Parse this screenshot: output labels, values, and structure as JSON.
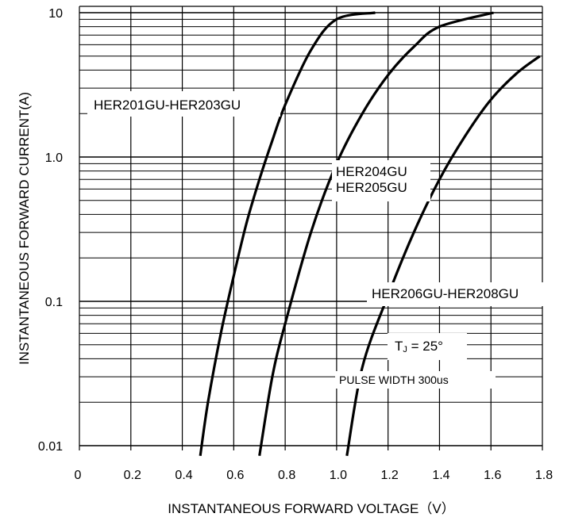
{
  "chart_data": {
    "type": "line",
    "xlabel": "INSTANTANEOUS FORWARD VOLTAGE（V）",
    "ylabel": "INSTANTANEOUS FORWARD CURRENT(A)",
    "xlim": [
      0,
      1.8
    ],
    "ylim": [
      0.01,
      10
    ],
    "yscale": "log",
    "grid": true,
    "x_ticks": [
      "0",
      "0.2",
      "0.4",
      "0.6",
      "0.8",
      "1.0",
      "1.2",
      "1.4",
      "1.6",
      "1.8"
    ],
    "y_ticks": [
      {
        "value": 10,
        "label": "10"
      },
      {
        "value": 1,
        "label": "1.0"
      },
      {
        "value": 0.1,
        "label": "0.1"
      },
      {
        "value": 0.01,
        "label": "0.01"
      }
    ],
    "series": [
      {
        "name": "HER201GU-HER203GU",
        "points": [
          [
            0.47,
            0.0085
          ],
          [
            0.5,
            0.02
          ],
          [
            0.55,
            0.06
          ],
          [
            0.6,
            0.15
          ],
          [
            0.65,
            0.35
          ],
          [
            0.7,
            0.7
          ],
          [
            0.75,
            1.3
          ],
          [
            0.8,
            2.3
          ],
          [
            0.9,
            5.5
          ],
          [
            1.0,
            9.0
          ],
          [
            1.15,
            10.0
          ]
        ]
      },
      {
        "name": "HER204GU\nHER205GU",
        "points": [
          [
            0.7,
            0.0085
          ],
          [
            0.75,
            0.03
          ],
          [
            0.8,
            0.07
          ],
          [
            0.9,
            0.3
          ],
          [
            1.0,
            0.9
          ],
          [
            1.1,
            2.0
          ],
          [
            1.2,
            3.7
          ],
          [
            1.3,
            5.8
          ],
          [
            1.4,
            8.0
          ],
          [
            1.61,
            10.0
          ]
        ]
      },
      {
        "name": "HER206GU-HER208GU",
        "points": [
          [
            1.04,
            0.0085
          ],
          [
            1.1,
            0.035
          ],
          [
            1.2,
            0.11
          ],
          [
            1.3,
            0.3
          ],
          [
            1.4,
            0.7
          ],
          [
            1.5,
            1.4
          ],
          [
            1.6,
            2.5
          ],
          [
            1.7,
            3.8
          ],
          [
            1.79,
            5.0
          ]
        ]
      }
    ],
    "labels": {
      "series1": "HER201GU-HER203GU",
      "series2_line1": "HER204GU",
      "series2_line2": "HER205GU",
      "series3": "HER206GU-HER208GU",
      "temp_prefix": "T",
      "temp_sub": "J",
      "temp_value": " = 25°",
      "pulse": "PULSE WIDTH 300us"
    }
  }
}
